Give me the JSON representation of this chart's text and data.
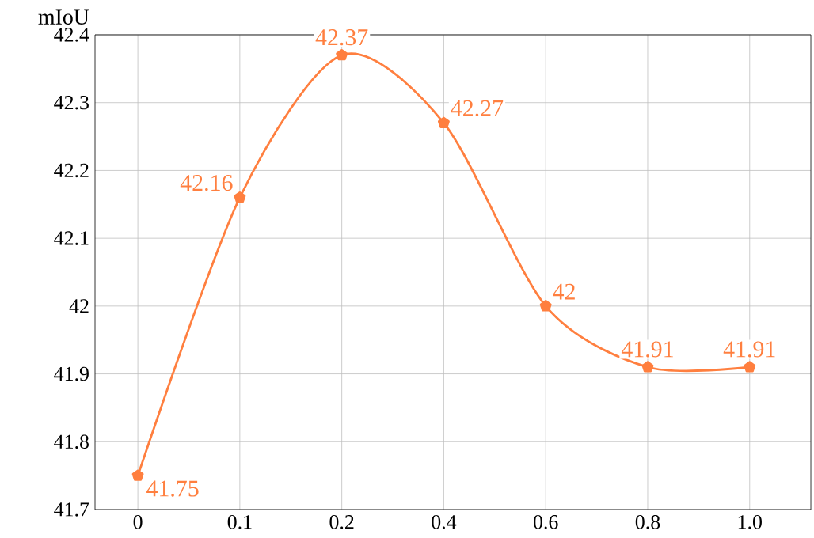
{
  "chart_data": {
    "type": "line",
    "ylabel": "mIoU",
    "categories": [
      "0",
      "0.1",
      "0.2",
      "0.4",
      "0.6",
      "0.8",
      "1.0"
    ],
    "values": [
      41.75,
      42.16,
      42.37,
      42.27,
      42,
      41.91,
      41.91
    ],
    "value_labels": [
      "41.75",
      "42.16",
      "42.37",
      "42.27",
      "42",
      "41.91",
      "41.91"
    ],
    "color": "#ff7f3f",
    "marker": "star",
    "line_style": "solid",
    "ylim": [
      41.7,
      42.4
    ],
    "yticks": [
      41.7,
      41.8,
      41.9,
      42,
      42.1,
      42.2,
      42.3,
      42.4
    ],
    "grid": true
  }
}
